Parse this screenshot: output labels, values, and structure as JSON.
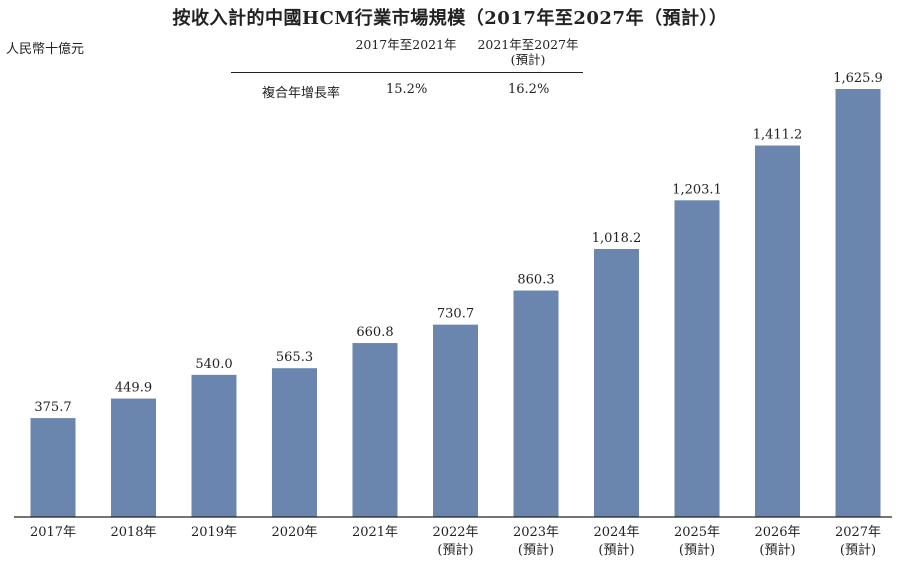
{
  "title": "按收入計的中國HCM行業市場規模（2017年至2027年（預計））",
  "unit_label": "人民幣十億元",
  "cagr_table": {
    "headers": [
      {
        "line1": "2017年至2021年",
        "line2": ""
      },
      {
        "line1": "2021年至2027年",
        "line2": "(預計)"
      }
    ],
    "row_label": "複合年增長率",
    "values": [
      "15.2%",
      "16.2%"
    ]
  },
  "chart_data": {
    "type": "bar",
    "categories": [
      "2017年",
      "2018年",
      "2019年",
      "2020年",
      "2021年",
      "2022年",
      "2023年",
      "2024年",
      "2025年",
      "2026年",
      "2027年"
    ],
    "category_notes": [
      "",
      "",
      "",
      "",
      "",
      "(預計)",
      "(預計)",
      "(預計)",
      "(預計)",
      "(預計)",
      "(預計)"
    ],
    "values": [
      375.7,
      449.9,
      540.0,
      565.3,
      660.8,
      730.7,
      860.3,
      1018.2,
      1203.1,
      1411.2,
      1625.9
    ],
    "value_labels": [
      "375.7",
      "449.9",
      "540.0",
      "565.3",
      "660.8",
      "730.7",
      "860.3",
      "1,018.2",
      "1,203.1",
      "1,411.2",
      "1,625.9"
    ],
    "title": "按收入計的中國HCM行業市場規模（2017年至2027年（預計））",
    "ylabel": "人民幣十億元",
    "xlabel": "",
    "ylim": [
      0,
      1800
    ],
    "grid": false,
    "bar_color": "#6a86ae"
  }
}
